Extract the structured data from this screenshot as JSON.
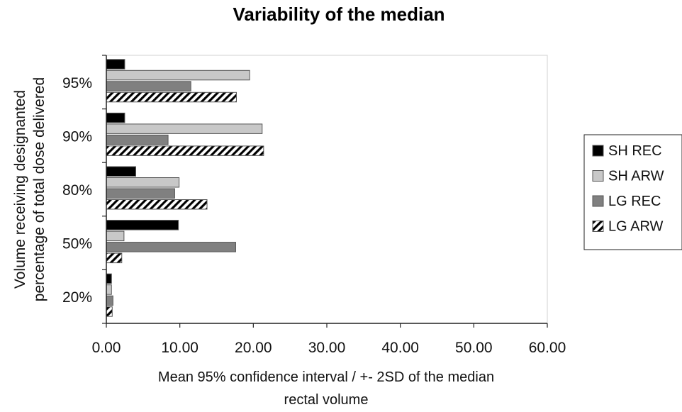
{
  "chart_data": {
    "type": "bar",
    "orientation": "horizontal",
    "title": "Variability of the median",
    "xlabel": [
      "Mean 95% confidence interval / +- 2SD of the median",
      "rectal volume"
    ],
    "ylabel": [
      "Volume receiving designanted",
      "percentage of total dose delivered"
    ],
    "xlim": [
      0,
      60
    ],
    "xticks": [
      "0.00",
      "10.00",
      "20.00",
      "30.00",
      "40.00",
      "50.00",
      "60.00"
    ],
    "categories": [
      "95%",
      "90%",
      "80%",
      "50%",
      "20%"
    ],
    "series": [
      {
        "name": "SH REC",
        "color": "#000000",
        "pattern": "solid",
        "values": [
          2.5,
          2.5,
          4.0,
          9.8,
          0.7
        ]
      },
      {
        "name": "SH ARW",
        "color": "#c8c8c8",
        "pattern": "solid",
        "values": [
          19.5,
          21.2,
          9.9,
          2.4,
          0.7
        ]
      },
      {
        "name": "LG REC",
        "color": "#808080",
        "pattern": "solid",
        "values": [
          11.5,
          8.4,
          9.3,
          17.6,
          0.9
        ]
      },
      {
        "name": "LG ARW",
        "color": "#000000",
        "pattern": "hatched",
        "values": [
          17.7,
          21.4,
          13.7,
          2.1,
          0.8
        ]
      }
    ],
    "grid": false,
    "legend": "right"
  }
}
